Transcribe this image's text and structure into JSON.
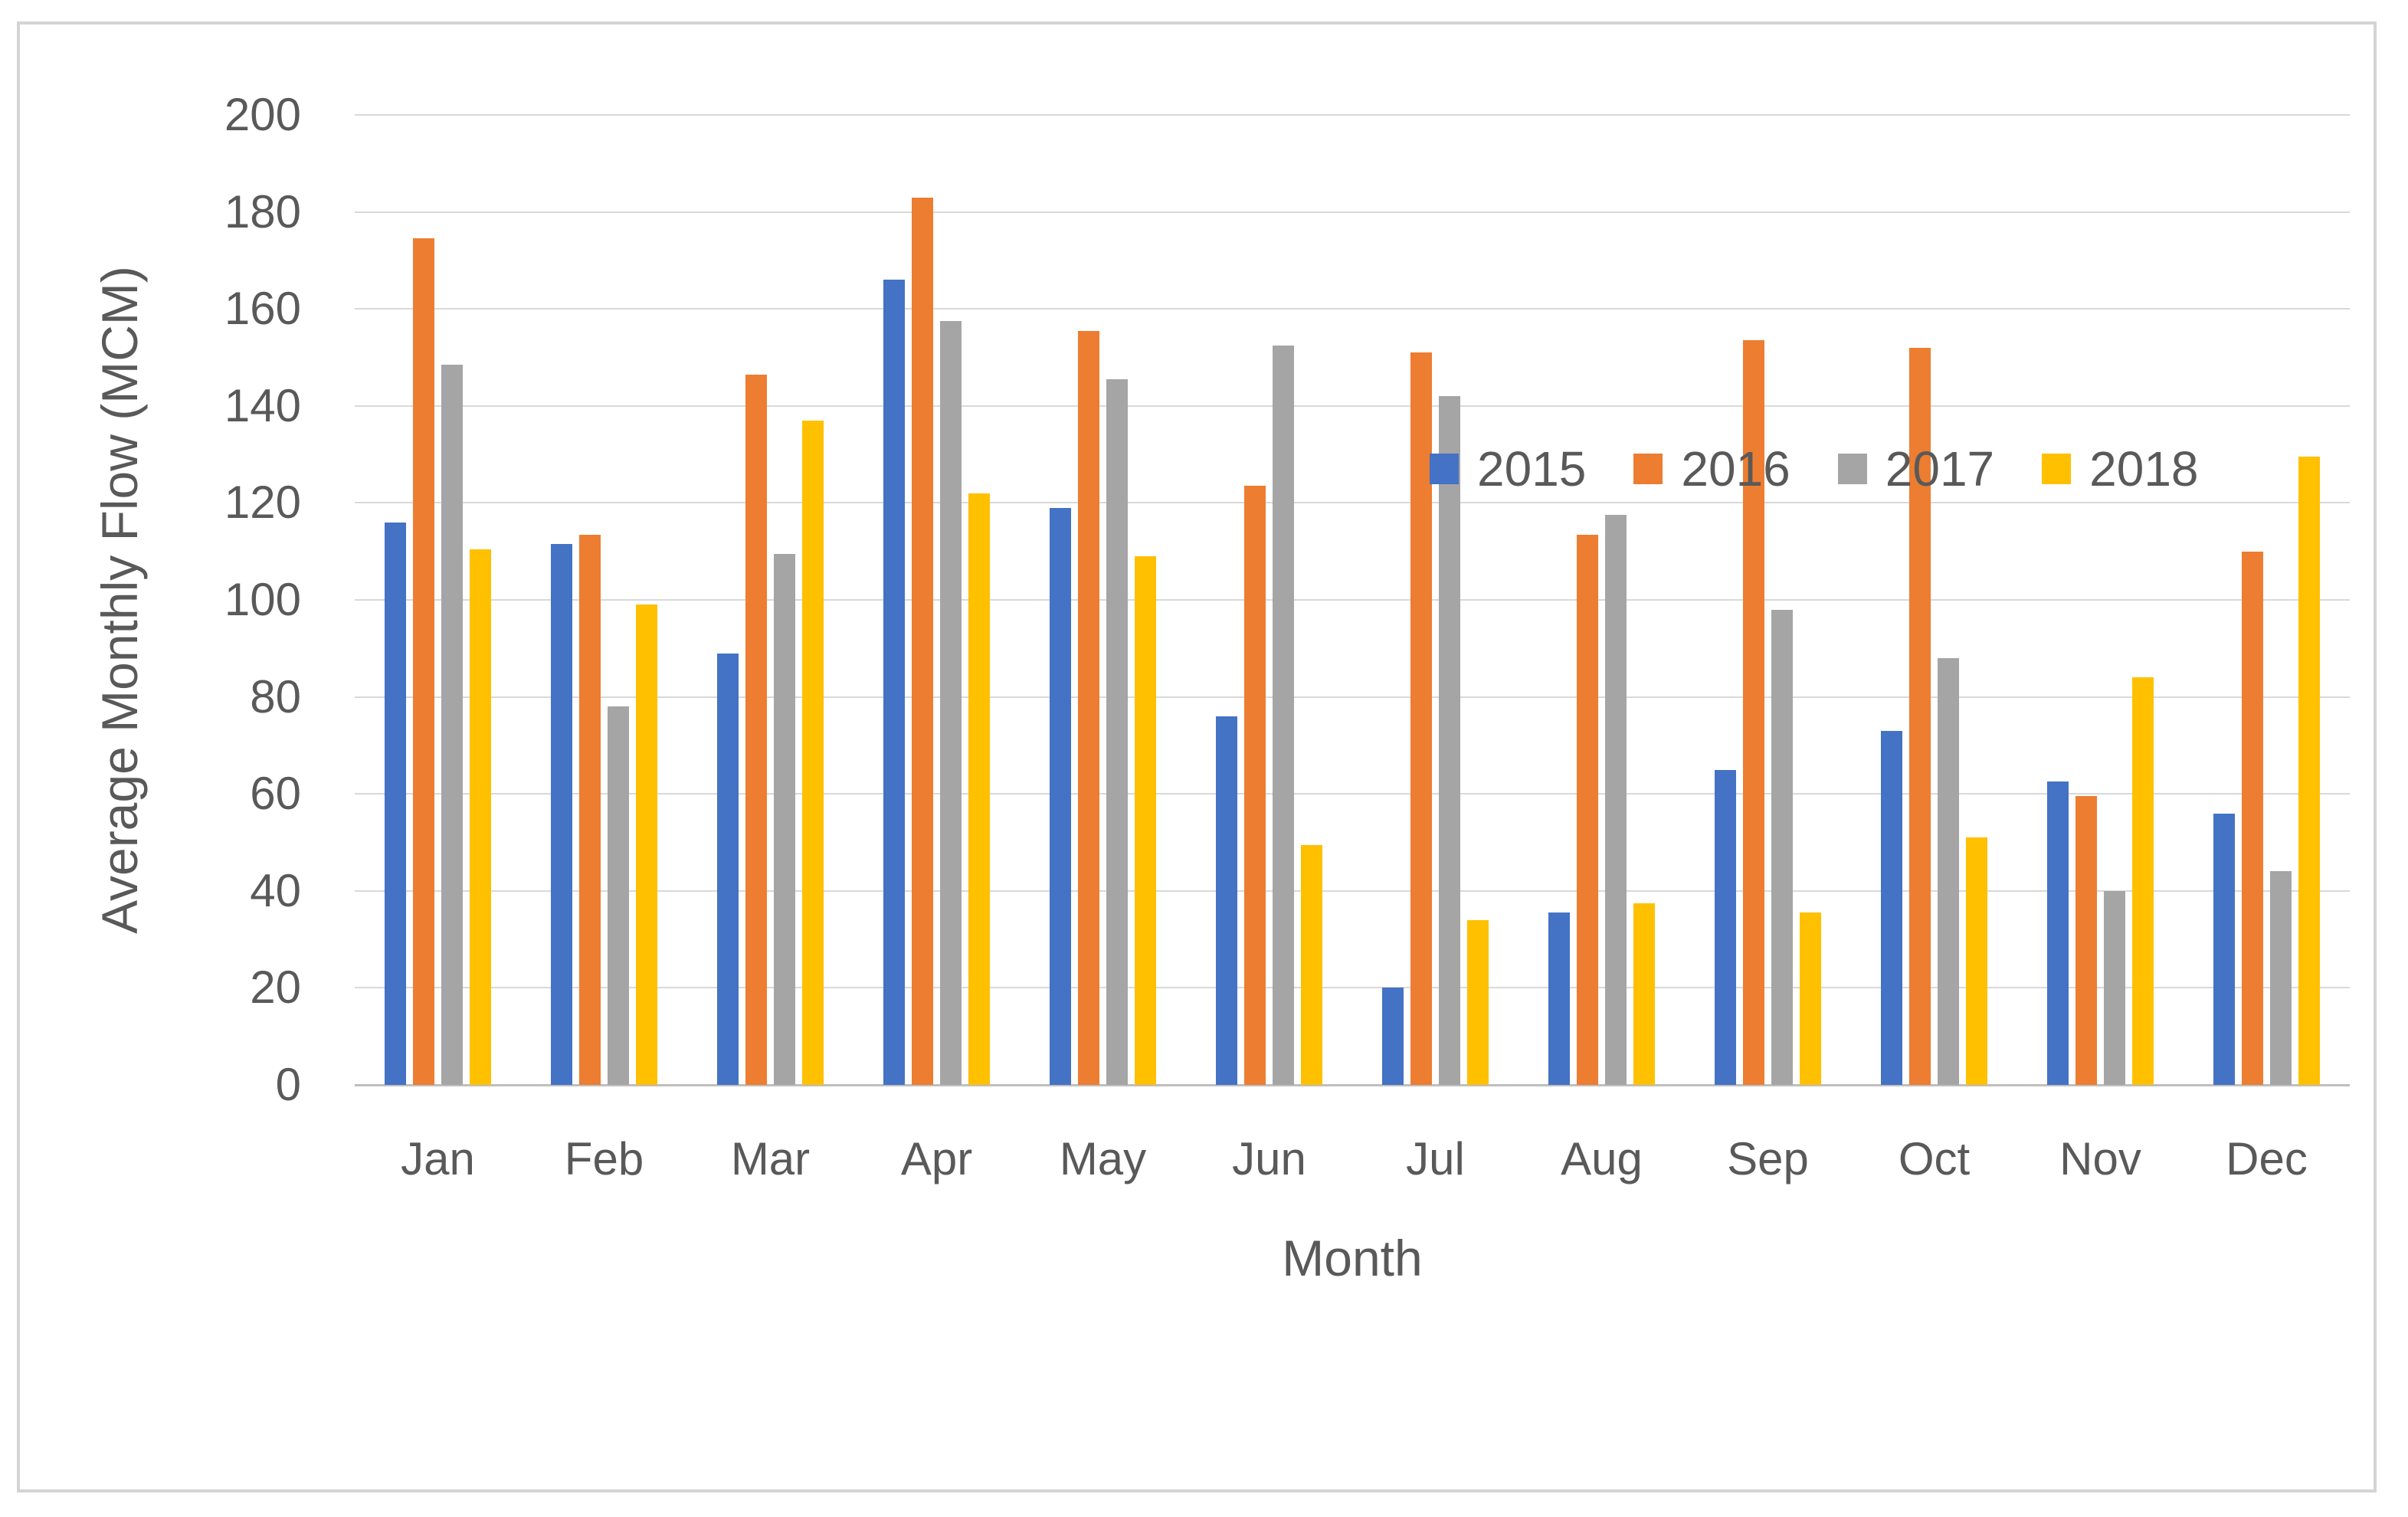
{
  "figure": {
    "background": "#FFFFFF",
    "border_color": "#D4D4D4"
  },
  "colors": {
    "text": "#595959",
    "gridline": "#D9D9D9",
    "axis_line": "#BFBFBF"
  },
  "chart_data": {
    "type": "bar",
    "title": "",
    "xlabel": "Month",
    "ylabel": "Average Monthly Flow (MCM)",
    "ylim": [
      0,
      200
    ],
    "ytick_step": 20,
    "yticks": [
      0,
      20,
      40,
      60,
      80,
      100,
      120,
      140,
      160,
      180,
      200
    ],
    "grid": "horizontal",
    "legend_position": "inside-right-upper",
    "categories": [
      "Jan",
      "Feb",
      "Mar",
      "Apr",
      "May",
      "Jun",
      "Jul",
      "Aug",
      "Sep",
      "Oct",
      "Nov",
      "Dec"
    ],
    "series": [
      {
        "name": "2015",
        "color": "#4472C4",
        "values": [
          116,
          111.5,
          89,
          166,
          119,
          76,
          20,
          35.5,
          65,
          73,
          62.5,
          56
        ]
      },
      {
        "name": "2016",
        "color": "#ED7D31",
        "values": [
          174.5,
          113.5,
          146.5,
          183,
          155.5,
          123.5,
          151,
          113.5,
          153.5,
          152,
          59.5,
          110
        ]
      },
      {
        "name": "2017",
        "color": "#A5A5A5",
        "values": [
          148.5,
          78,
          109.5,
          157.5,
          145.5,
          152.5,
          142,
          117.5,
          98,
          88,
          40,
          44
        ]
      },
      {
        "name": "2018",
        "color": "#FFC000",
        "values": [
          110.5,
          99,
          137,
          122,
          109,
          49.5,
          34,
          37.5,
          35.5,
          51,
          84,
          129.5
        ]
      }
    ]
  }
}
